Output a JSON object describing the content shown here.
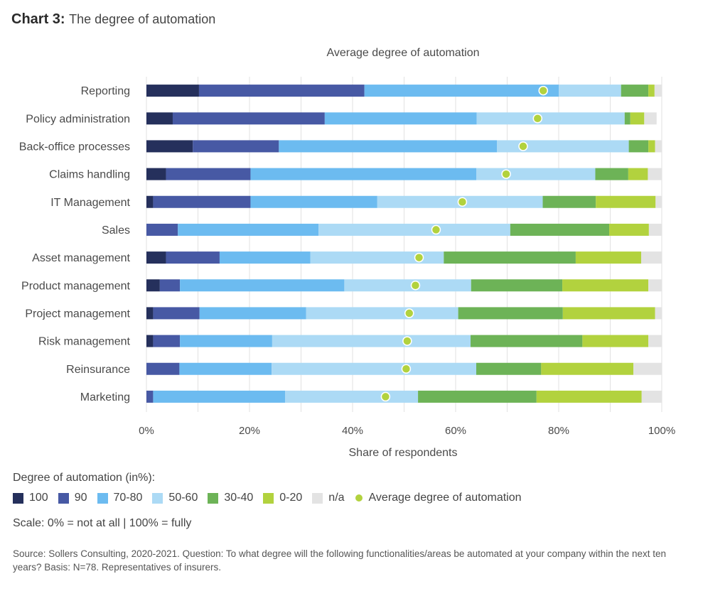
{
  "heading": {
    "chart_number": "Chart 3:",
    "title": "The degree of automation"
  },
  "colors": {
    "c100": "#25305c",
    "c90": "#4759a4",
    "c7080": "#6cbbf0",
    "c5060": "#acdaf5",
    "c3040": "#6db357",
    "c020": "#b2d23e",
    "na": "#e3e3e3",
    "avg": "#b2d23e"
  },
  "legend": {
    "title": "Degree of automation (in%):",
    "items": [
      {
        "key": "c100",
        "label": "100"
      },
      {
        "key": "c90",
        "label": "90"
      },
      {
        "key": "c7080",
        "label": "70-80"
      },
      {
        "key": "c5060",
        "label": "50-60"
      },
      {
        "key": "c3040",
        "label": "30-40"
      },
      {
        "key": "c020",
        "label": "0-20"
      },
      {
        "key": "na",
        "label": "n/a"
      }
    ],
    "avg_label": "Average degree of automation"
  },
  "scale_note": "Scale: 0% = not at all | 100% = fully",
  "source": "Source: Sollers Consulting, 2020-2021. Question: To what degree will the following functionalities/areas be automated at your company within the next ten years? Basis: N=78. Representatives of insurers.",
  "chart_data": {
    "type": "bar",
    "orientation": "horizontal",
    "stacked": true,
    "title": "Average degree of automation",
    "xlabel": "Share of respondents",
    "ylabel": "",
    "xlim": [
      0,
      100
    ],
    "xticks": [
      "0%",
      "20%",
      "40%",
      "60%",
      "80%",
      "100%"
    ],
    "grid": true,
    "categories": [
      "Reporting",
      "Policy administration",
      "Back-office processes",
      "Claims handling",
      "IT Management",
      "Sales",
      "Asset management",
      "Product management",
      "Project management",
      "Risk management",
      "Reinsurance",
      "Marketing"
    ],
    "series": [
      {
        "name": "100",
        "key": "c100",
        "values": [
          10.2,
          5.1,
          9.0,
          3.8,
          1.3,
          0,
          3.8,
          2.6,
          1.3,
          1.3,
          0,
          0
        ]
      },
      {
        "name": "90",
        "key": "c90",
        "values": [
          32.1,
          29.5,
          16.7,
          16.4,
          18.9,
          6.1,
          10.4,
          3.9,
          9.0,
          5.2,
          6.4,
          1.3
        ]
      },
      {
        "name": "70-80",
        "key": "c7080",
        "values": [
          37.7,
          29.5,
          42.3,
          43.8,
          24.6,
          27.3,
          17.6,
          31.9,
          20.7,
          17.9,
          17.9,
          25.6
        ]
      },
      {
        "name": "50-60",
        "key": "c5060",
        "values": [
          12.1,
          28.7,
          25.6,
          23.1,
          32.1,
          37.2,
          25.9,
          24.6,
          29.5,
          38.5,
          39.7,
          25.8
        ]
      },
      {
        "name": "30-40",
        "key": "c3040",
        "values": [
          5.3,
          1.1,
          3.8,
          6.4,
          10.3,
          19.2,
          25.6,
          17.7,
          20.3,
          21.7,
          12.6,
          23.0
        ]
      },
      {
        "name": "0-20",
        "key": "c020",
        "values": [
          1.2,
          2.7,
          1.3,
          3.8,
          11.6,
          7.7,
          12.7,
          16.7,
          17.9,
          12.8,
          17.9,
          20.4
        ]
      },
      {
        "name": "n/a",
        "key": "na",
        "values": [
          1.4,
          2.4,
          1.3,
          2.7,
          1.2,
          2.5,
          4.0,
          2.6,
          1.3,
          2.6,
          5.5,
          3.9
        ]
      }
    ],
    "average": {
      "name": "Average degree of automation",
      "values": [
        77.0,
        75.9,
        73.1,
        69.8,
        61.3,
        56.2,
        52.9,
        52.2,
        51.0,
        50.6,
        50.4,
        46.4
      ]
    }
  }
}
